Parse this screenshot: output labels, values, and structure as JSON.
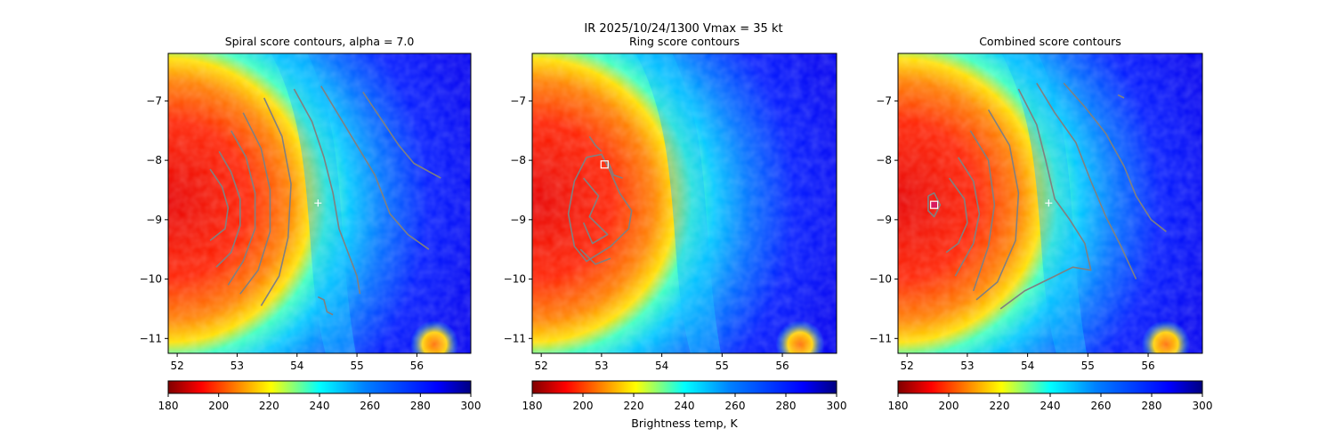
{
  "suptitle": {
    "line1": "IR  2025/10/24/1300    Vmax = 35 kt"
  },
  "colors": {
    "contour": "#808080",
    "marker": "#ffffff",
    "combined_center": "#d81b60"
  },
  "chart_data": [
    {
      "type": "heatmap",
      "title": "Spiral score contours, alpha =  7.0",
      "xlim": [
        51.85,
        56.9
      ],
      "ylim": [
        -11.25,
        -6.2
      ],
      "xticks": [
        "52",
        "53",
        "54",
        "55",
        "56"
      ],
      "yticks": [
        "−7",
        "−8",
        "−9",
        "−10",
        "−11"
      ],
      "colorbar": {
        "cmap": "jet_r",
        "range": [
          180,
          300
        ],
        "ticks": [
          "180",
          "200",
          "220",
          "240",
          "260",
          "280",
          "300"
        ],
        "label": ""
      },
      "markers": [
        {
          "kind": "plus",
          "x": 54.35,
          "y": -8.72
        }
      ],
      "contours": [
        [
          [
            52.55,
            -8.15
          ],
          [
            52.75,
            -8.45
          ],
          [
            52.85,
            -8.8
          ],
          [
            52.8,
            -9.15
          ],
          [
            52.55,
            -9.35
          ]
        ],
        [
          [
            52.7,
            -7.85
          ],
          [
            52.9,
            -8.2
          ],
          [
            53.05,
            -8.65
          ],
          [
            53.05,
            -9.1
          ],
          [
            52.9,
            -9.55
          ],
          [
            52.65,
            -9.8
          ]
        ],
        [
          [
            52.9,
            -7.5
          ],
          [
            53.15,
            -7.95
          ],
          [
            53.3,
            -8.55
          ],
          [
            53.3,
            -9.15
          ],
          [
            53.1,
            -9.7
          ],
          [
            52.85,
            -10.1
          ]
        ],
        [
          [
            53.1,
            -7.2
          ],
          [
            53.4,
            -7.8
          ],
          [
            53.55,
            -8.5
          ],
          [
            53.55,
            -9.2
          ],
          [
            53.35,
            -9.85
          ],
          [
            53.05,
            -10.25
          ]
        ],
        [
          [
            53.45,
            -6.95
          ],
          [
            53.75,
            -7.6
          ],
          [
            53.9,
            -8.4
          ],
          [
            53.85,
            -9.3
          ],
          [
            53.7,
            -9.95
          ],
          [
            53.4,
            -10.45
          ]
        ],
        [
          [
            53.95,
            -6.8
          ],
          [
            54.25,
            -7.35
          ],
          [
            54.45,
            -7.95
          ],
          [
            54.6,
            -8.55
          ],
          [
            54.7,
            -9.15
          ],
          [
            54.85,
            -9.55
          ],
          [
            55.0,
            -9.95
          ],
          [
            55.05,
            -10.25
          ]
        ],
        [
          [
            54.4,
            -6.75
          ],
          [
            54.7,
            -7.25
          ],
          [
            55.0,
            -7.75
          ],
          [
            55.3,
            -8.25
          ],
          [
            55.55,
            -8.9
          ],
          [
            55.85,
            -9.25
          ],
          [
            56.2,
            -9.5
          ]
        ],
        [
          [
            55.1,
            -6.85
          ],
          [
            55.4,
            -7.3
          ],
          [
            55.7,
            -7.75
          ],
          [
            55.95,
            -8.05
          ],
          [
            56.4,
            -8.3
          ]
        ],
        [
          [
            54.35,
            -10.3
          ],
          [
            54.45,
            -10.35
          ],
          [
            54.5,
            -10.55
          ],
          [
            54.6,
            -10.6
          ]
        ]
      ]
    },
    {
      "type": "heatmap",
      "title": "Ring score contours",
      "xlim": [
        51.85,
        56.9
      ],
      "ylim": [
        -11.25,
        -6.2
      ],
      "xticks": [
        "52",
        "53",
        "54",
        "55",
        "56"
      ],
      "yticks": [
        "−7",
        "−8",
        "−9",
        "−10",
        "−11"
      ],
      "colorbar": {
        "cmap": "jet_r",
        "range": [
          180,
          300
        ],
        "ticks": [
          "180",
          "200",
          "220",
          "240",
          "260",
          "280",
          "300"
        ],
        "label": "Brightness temp, K"
      },
      "markers": [
        {
          "kind": "square",
          "x": 53.05,
          "y": -8.07
        }
      ],
      "contours": [
        [
          [
            52.75,
            -7.95
          ],
          [
            52.55,
            -8.35
          ],
          [
            52.45,
            -8.9
          ],
          [
            52.55,
            -9.45
          ],
          [
            52.75,
            -9.7
          ],
          [
            53.15,
            -9.45
          ],
          [
            53.45,
            -9.15
          ],
          [
            53.5,
            -8.85
          ],
          [
            53.3,
            -8.55
          ],
          [
            53.15,
            -8.2
          ],
          [
            53.0,
            -7.9
          ],
          [
            52.75,
            -7.95
          ]
        ],
        [
          [
            52.7,
            -8.3
          ],
          [
            52.95,
            -8.6
          ],
          [
            52.8,
            -8.95
          ],
          [
            53.1,
            -9.25
          ],
          [
            52.85,
            -9.4
          ],
          [
            52.7,
            -9.05
          ]
        ],
        [
          [
            52.8,
            -7.6
          ],
          [
            52.9,
            -7.75
          ],
          [
            53.0,
            -7.85
          ]
        ],
        [
          [
            53.1,
            -8.0
          ],
          [
            53.2,
            -8.25
          ],
          [
            53.35,
            -8.3
          ]
        ],
        [
          [
            52.65,
            -9.5
          ],
          [
            52.9,
            -9.75
          ],
          [
            53.15,
            -9.65
          ]
        ]
      ]
    },
    {
      "type": "heatmap",
      "title": "Combined score contours",
      "xlim": [
        51.85,
        56.9
      ],
      "ylim": [
        -11.25,
        -6.2
      ],
      "xticks": [
        "52",
        "53",
        "54",
        "55",
        "56"
      ],
      "yticks": [
        "−7",
        "−8",
        "−9",
        "−10",
        "−11"
      ],
      "colorbar": {
        "cmap": "jet_r",
        "range": [
          180,
          300
        ],
        "ticks": [
          "180",
          "200",
          "220",
          "240",
          "260",
          "280",
          "300"
        ],
        "label": ""
      },
      "markers": [
        {
          "kind": "plus",
          "x": 54.35,
          "y": -8.72
        },
        {
          "kind": "square",
          "x": 52.45,
          "y": -8.75
        }
      ],
      "contours": [
        [
          [
            52.35,
            -8.6
          ],
          [
            52.45,
            -8.55
          ],
          [
            52.55,
            -8.75
          ],
          [
            52.45,
            -8.95
          ],
          [
            52.35,
            -8.85
          ],
          [
            52.35,
            -8.6
          ]
        ],
        [
          [
            52.7,
            -8.3
          ],
          [
            52.95,
            -8.65
          ],
          [
            53.0,
            -9.05
          ],
          [
            52.85,
            -9.4
          ],
          [
            52.65,
            -9.55
          ]
        ],
        [
          [
            52.85,
            -7.95
          ],
          [
            53.1,
            -8.35
          ],
          [
            53.2,
            -8.9
          ],
          [
            53.1,
            -9.4
          ],
          [
            52.8,
            -9.95
          ]
        ],
        [
          [
            53.05,
            -7.5
          ],
          [
            53.35,
            -8.0
          ],
          [
            53.45,
            -8.75
          ],
          [
            53.35,
            -9.45
          ],
          [
            53.1,
            -10.2
          ]
        ],
        [
          [
            53.35,
            -7.15
          ],
          [
            53.7,
            -7.75
          ],
          [
            53.85,
            -8.55
          ],
          [
            53.8,
            -9.35
          ],
          [
            53.5,
            -10.05
          ],
          [
            53.15,
            -10.35
          ]
        ],
        [
          [
            53.85,
            -6.8
          ],
          [
            54.15,
            -7.4
          ],
          [
            54.3,
            -8.0
          ],
          [
            54.45,
            -8.65
          ],
          [
            54.7,
            -9.0
          ],
          [
            54.95,
            -9.4
          ],
          [
            55.05,
            -9.85
          ],
          [
            54.75,
            -9.8
          ],
          [
            54.35,
            -10.0
          ],
          [
            53.95,
            -10.2
          ],
          [
            53.55,
            -10.5
          ]
        ],
        [
          [
            54.15,
            -6.7
          ],
          [
            54.45,
            -7.2
          ],
          [
            54.8,
            -7.7
          ],
          [
            55.05,
            -8.35
          ],
          [
            55.3,
            -8.95
          ],
          [
            55.55,
            -9.45
          ],
          [
            55.8,
            -10.0
          ]
        ],
        [
          [
            54.6,
            -6.7
          ],
          [
            54.95,
            -7.1
          ],
          [
            55.3,
            -7.55
          ],
          [
            55.6,
            -8.1
          ],
          [
            55.8,
            -8.6
          ],
          [
            56.05,
            -9.0
          ],
          [
            56.3,
            -9.2
          ]
        ],
        [
          [
            55.5,
            -6.9
          ],
          [
            55.6,
            -6.95
          ]
        ]
      ]
    }
  ]
}
